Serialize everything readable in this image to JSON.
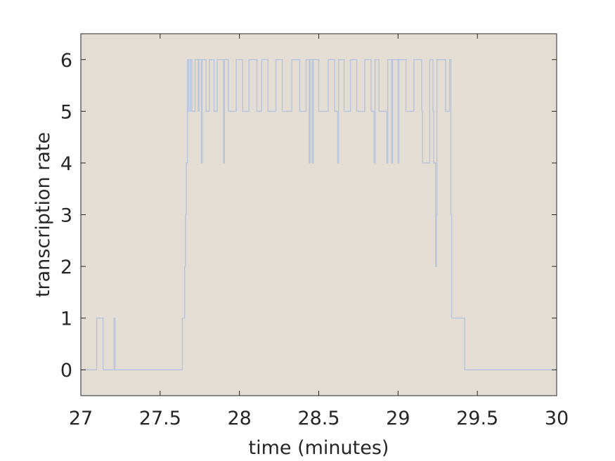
{
  "chart_data": {
    "type": "line",
    "title": "",
    "xlabel": "time (minutes)",
    "ylabel": "transcription rate",
    "xlim": [
      27,
      30
    ],
    "ylim": [
      -0.5,
      6.5
    ],
    "xticks": [
      27,
      27.5,
      28,
      28.5,
      29,
      29.5,
      30
    ],
    "xtick_labels": [
      "27",
      "27.5",
      "28",
      "28.5",
      "29",
      "29.5",
      "30"
    ],
    "yticks": [
      0,
      1,
      2,
      3,
      4,
      5,
      6
    ],
    "ytick_labels": [
      "0",
      "1",
      "2",
      "3",
      "4",
      "5",
      "6"
    ],
    "grid": false,
    "legend": "none",
    "colors": {
      "plot_background": "#e3ddd3",
      "line": "#b9c6dd",
      "axis": "#262626"
    },
    "series": [
      {
        "x": [
          27.0,
          27.1,
          27.1,
          27.14,
          27.14,
          27.21,
          27.21,
          27.215,
          27.215,
          27.64,
          27.64,
          27.655,
          27.655,
          27.66,
          27.66,
          27.665,
          27.665,
          27.672,
          27.672,
          27.68,
          27.68,
          27.69,
          27.69,
          27.7,
          27.7,
          27.72,
          27.72,
          27.74,
          27.74,
          27.745,
          27.745,
          27.76,
          27.76,
          27.765,
          27.765,
          27.79,
          27.79,
          27.81,
          27.81,
          27.84,
          27.84,
          27.86,
          27.86,
          27.9,
          27.9,
          27.905,
          27.905,
          27.93,
          27.93,
          27.98,
          27.98,
          28.02,
          28.02,
          28.06,
          28.06,
          28.11,
          28.11,
          28.14,
          28.14,
          28.18,
          28.18,
          28.23,
          28.23,
          28.27,
          28.27,
          28.33,
          28.33,
          28.38,
          28.38,
          28.42,
          28.42,
          28.44,
          28.44,
          28.445,
          28.445,
          28.46,
          28.46,
          28.465,
          28.465,
          28.5,
          28.5,
          28.56,
          28.56,
          28.6,
          28.6,
          28.62,
          28.62,
          28.625,
          28.625,
          28.66,
          28.66,
          28.7,
          28.7,
          28.74,
          28.74,
          28.79,
          28.79,
          28.83,
          28.83,
          28.85,
          28.85,
          28.855,
          28.855,
          28.88,
          28.88,
          28.93,
          28.93,
          28.935,
          28.935,
          28.96,
          28.96,
          28.965,
          28.965,
          29.0,
          29.0,
          29.005,
          29.005,
          29.05,
          29.05,
          29.1,
          29.1,
          29.15,
          29.15,
          29.155,
          29.155,
          29.2,
          29.2,
          29.22,
          29.22,
          29.225,
          29.225,
          29.235,
          29.235,
          29.237,
          29.237,
          29.242,
          29.242,
          29.245,
          29.245,
          29.3,
          29.3,
          29.325,
          29.325,
          29.333,
          29.333,
          29.338,
          29.338,
          29.42,
          29.42,
          30.0
        ],
        "y": [
          0,
          0,
          1,
          1,
          0,
          0,
          1,
          1,
          0,
          0,
          1,
          1,
          2,
          2,
          3,
          3,
          4,
          4,
          6,
          6,
          5,
          5,
          6,
          6,
          5,
          5,
          6,
          6,
          5,
          5,
          6,
          6,
          4,
          4,
          6,
          6,
          5,
          5,
          6,
          6,
          5,
          5,
          6,
          6,
          4,
          4,
          6,
          6,
          5,
          5,
          6,
          6,
          5,
          5,
          6,
          6,
          5,
          5,
          6,
          6,
          5,
          5,
          6,
          6,
          5,
          5,
          6,
          6,
          5,
          5,
          6,
          6,
          4,
          4,
          6,
          6,
          4,
          4,
          6,
          6,
          5,
          5,
          6,
          6,
          5,
          5,
          4,
          4,
          6,
          6,
          5,
          5,
          6,
          6,
          5,
          5,
          6,
          6,
          5,
          5,
          4,
          4,
          6,
          6,
          5,
          5,
          4,
          4,
          6,
          6,
          4,
          4,
          6,
          6,
          4,
          4,
          6,
          6,
          5,
          5,
          6,
          6,
          5,
          5,
          4,
          4,
          6,
          6,
          5,
          5,
          4,
          4,
          4,
          4,
          2,
          2,
          3,
          3,
          6,
          6,
          5,
          5,
          6,
          6,
          3,
          3,
          1,
          1,
          0,
          0
        ]
      }
    ]
  }
}
